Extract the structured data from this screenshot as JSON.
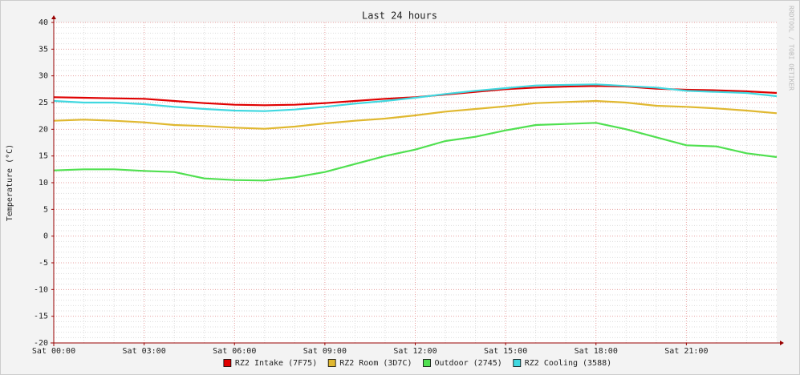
{
  "chart_data": {
    "type": "line",
    "title": "Last 24 hours",
    "y_label": "Temperature (°C)",
    "watermark": "RRDTOOL / TOBI OETIKER",
    "x": [
      0,
      1,
      2,
      3,
      4,
      5,
      6,
      7,
      8,
      9,
      10,
      11,
      12,
      13,
      14,
      15,
      16,
      17,
      18,
      19,
      20,
      21,
      22,
      23,
      24
    ],
    "xlim": [
      0,
      24
    ],
    "xticks": [
      {
        "value": 0,
        "label": "Sat 00:00"
      },
      {
        "value": 3,
        "label": "Sat 03:00"
      },
      {
        "value": 6,
        "label": "Sat 06:00"
      },
      {
        "value": 9,
        "label": "Sat 09:00"
      },
      {
        "value": 12,
        "label": "Sat 12:00"
      },
      {
        "value": 15,
        "label": "Sat 15:00"
      },
      {
        "value": 18,
        "label": "Sat 18:00"
      },
      {
        "value": 21,
        "label": "Sat 21:00"
      }
    ],
    "ylim": [
      -20,
      40
    ],
    "yticks": [
      -20,
      -15,
      -10,
      -5,
      0,
      5,
      10,
      15,
      20,
      25,
      30,
      35,
      40
    ],
    "grid": true,
    "legend": "bottom",
    "series": [
      {
        "name": "RZ2 Intake (7F75)",
        "color": "#e00000",
        "values": [
          26.0,
          25.9,
          25.8,
          25.7,
          25.3,
          24.9,
          24.6,
          24.5,
          24.6,
          24.9,
          25.3,
          25.7,
          26.0,
          26.5,
          27.0,
          27.5,
          27.8,
          28.0,
          28.1,
          28.0,
          27.6,
          27.4,
          27.3,
          27.1,
          26.8
        ]
      },
      {
        "name": "RZ2 Room (3D7C)",
        "color": "#e0b830",
        "values": [
          21.6,
          21.8,
          21.6,
          21.3,
          20.8,
          20.6,
          20.3,
          20.1,
          20.5,
          21.1,
          21.6,
          22.0,
          22.6,
          23.3,
          23.8,
          24.3,
          24.9,
          25.1,
          25.3,
          25.0,
          24.4,
          24.2,
          23.9,
          23.5,
          23.0
        ]
      },
      {
        "name": "Outdoor (2745)",
        "color": "#50e050",
        "values": [
          12.3,
          12.5,
          12.5,
          12.2,
          12.0,
          10.8,
          10.5,
          10.4,
          11.0,
          12.0,
          13.5,
          15.0,
          16.2,
          17.8,
          18.6,
          19.8,
          20.8,
          21.0,
          21.2,
          20.0,
          18.5,
          17.0,
          16.8,
          15.5,
          14.8
        ]
      },
      {
        "name": "RZ2 Cooling (3588)",
        "color": "#40d8e0",
        "values": [
          25.3,
          25.0,
          25.0,
          24.7,
          24.2,
          23.8,
          23.5,
          23.4,
          23.7,
          24.2,
          24.8,
          25.3,
          25.9,
          26.6,
          27.2,
          27.7,
          28.2,
          28.3,
          28.4,
          28.1,
          27.8,
          27.2,
          27.0,
          26.8,
          26.2
        ]
      }
    ]
  }
}
